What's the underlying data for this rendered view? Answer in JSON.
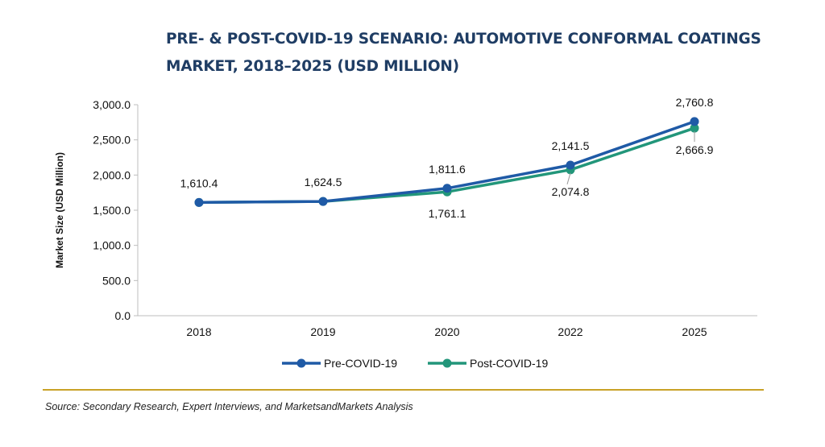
{
  "title_lines": [
    "PRE- & POST-COVID-19 SCENARIO: AUTOMOTIVE CONFORMAL COATINGS",
    "MARKET, 2018–2025 (USD MILLION)"
  ],
  "source": "Source: Secondary Research, Expert Interviews, and MarketsandMarkets Analysis",
  "colors": {
    "title": "#1f3d64",
    "pre": "#1f5aa6",
    "post": "#22967a",
    "rule": "#c9a227"
  },
  "chart_data": {
    "type": "line",
    "title": "PRE- & POST-COVID-19 SCENARIO: AUTOMOTIVE CONFORMAL COATINGS MARKET, 2018–2025 (USD MILLION)",
    "categories": [
      "2018",
      "2019",
      "2020",
      "2022",
      "2025"
    ],
    "xlabel": "",
    "ylabel": "Market Size (USD Million)",
    "ylim": [
      0,
      3000
    ],
    "yticks": [
      "0.0",
      "500.0",
      "1,000.0",
      "1,500.0",
      "2,000.0",
      "2,500.0",
      "3,000.0"
    ],
    "grid": false,
    "legend": "bottom",
    "series": [
      {
        "name": "Pre-COVID-19",
        "values": [
          1610.4,
          1624.5,
          1811.6,
          2141.5,
          2760.8
        ],
        "labels": [
          "1,610.4",
          "1,624.5",
          "1,811.6",
          "2,141.5",
          "2,760.8"
        ]
      },
      {
        "name": "Post-COVID-19",
        "values": [
          1610.4,
          1624.5,
          1761.1,
          2074.8,
          2666.9
        ],
        "labels": [
          "",
          "",
          "1,761.1",
          "2,074.8",
          "2,666.9"
        ]
      }
    ]
  }
}
